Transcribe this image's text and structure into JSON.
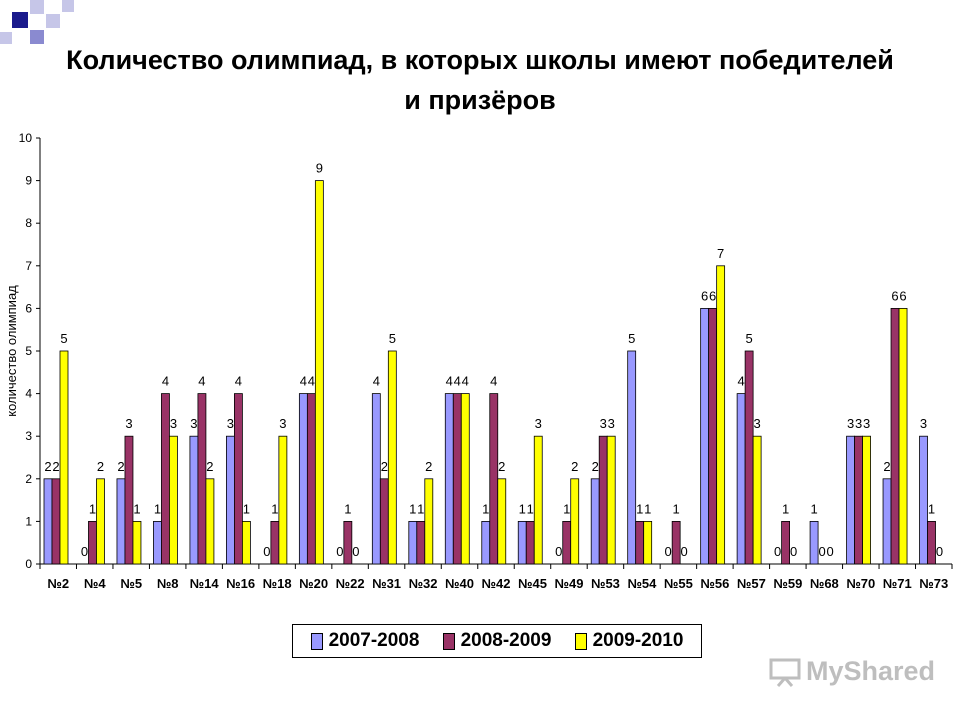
{
  "title": "Количество олимпиад, в которых школы имеют победителей и призёров",
  "watermark": "MyShared",
  "chart_data": {
    "type": "bar",
    "title": "Количество олимпиад, в которых школы имеют победителей и призёров",
    "ylabel": "количество олимпиад",
    "xlabel": "",
    "ylim": [
      0,
      10
    ],
    "yticks": [
      "0",
      "1",
      "2",
      "3",
      "4",
      "5",
      "6",
      "7",
      "8",
      "9",
      "10"
    ],
    "grid": false,
    "legend": "bottom",
    "categories": [
      "№2",
      "№4",
      "№5",
      "№8",
      "№14",
      "№16",
      "№18",
      "№20",
      "№22",
      "№31",
      "№32",
      "№40",
      "№42",
      "№45",
      "№49",
      "№53",
      "№54",
      "№55",
      "№56",
      "№57",
      "№59",
      "№68",
      "№70",
      "№71",
      "№73"
    ],
    "series": [
      {
        "name": "2007-2008",
        "color": "#9999ff",
        "values": [
          2,
          0,
          2,
          1,
          3,
          3,
          0,
          4,
          0,
          4,
          1,
          4,
          1,
          1,
          0,
          2,
          5,
          0,
          6,
          4,
          0,
          1,
          3,
          2,
          3
        ]
      },
      {
        "name": "2008-2009",
        "color": "#993366",
        "values": [
          2,
          1,
          3,
          4,
          4,
          4,
          1,
          4,
          1,
          2,
          1,
          4,
          4,
          1,
          1,
          3,
          1,
          1,
          6,
          5,
          1,
          0,
          3,
          6,
          1
        ]
      },
      {
        "name": "2009-2010",
        "color": "#ffff00",
        "values": [
          5,
          2,
          1,
          3,
          2,
          1,
          3,
          9,
          0,
          5,
          2,
          4,
          2,
          3,
          2,
          3,
          1,
          0,
          7,
          3,
          0,
          0,
          3,
          6,
          0
        ]
      }
    ]
  }
}
